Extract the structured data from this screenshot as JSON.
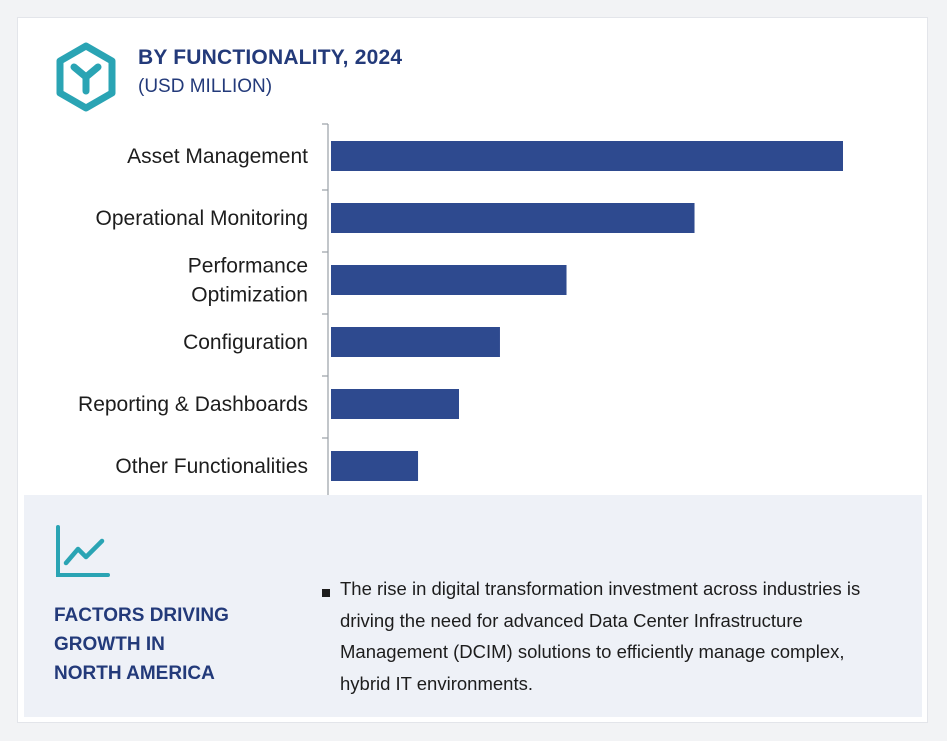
{
  "header": {
    "title": "BY FUNCTIONALITY, 2024",
    "subtitle": "(USD MILLION)"
  },
  "colors": {
    "bar": "#2e4a8f",
    "heading": "#233a7a",
    "accent": "#2aa4b4"
  },
  "chart_data": {
    "type": "bar",
    "orientation": "horizontal",
    "categories": [
      "Asset Management",
      "Operational Monitoring",
      "Performance Optimization",
      "Configuration",
      "Reporting & Dashboards",
      "Other Functionalities"
    ],
    "category_lines": [
      [
        "Asset Management"
      ],
      [
        "Operational Monitoring"
      ],
      [
        "Performance",
        "Optimization"
      ],
      [
        "Configuration"
      ],
      [
        "Reporting & Dashboards"
      ],
      [
        "Other Functionalities"
      ]
    ],
    "values": [
      100,
      71,
      46,
      33,
      25,
      17
    ],
    "xlim": [
      0,
      100
    ],
    "grid": false,
    "legend": false,
    "title": "BY FUNCTIONALITY, 2024",
    "subtitle": "(USD MILLION)"
  },
  "factors": {
    "icon": "trend-line-chart-icon",
    "heading": "FACTORS DRIVING\nGROWTH IN\nNORTH AMERICA",
    "bullet_text": "The rise in digital transformation investment across industries is driving the need for advanced Data Center Infrastructure Management (DCIM) solutions to efficiently manage complex, hybrid IT environments."
  }
}
